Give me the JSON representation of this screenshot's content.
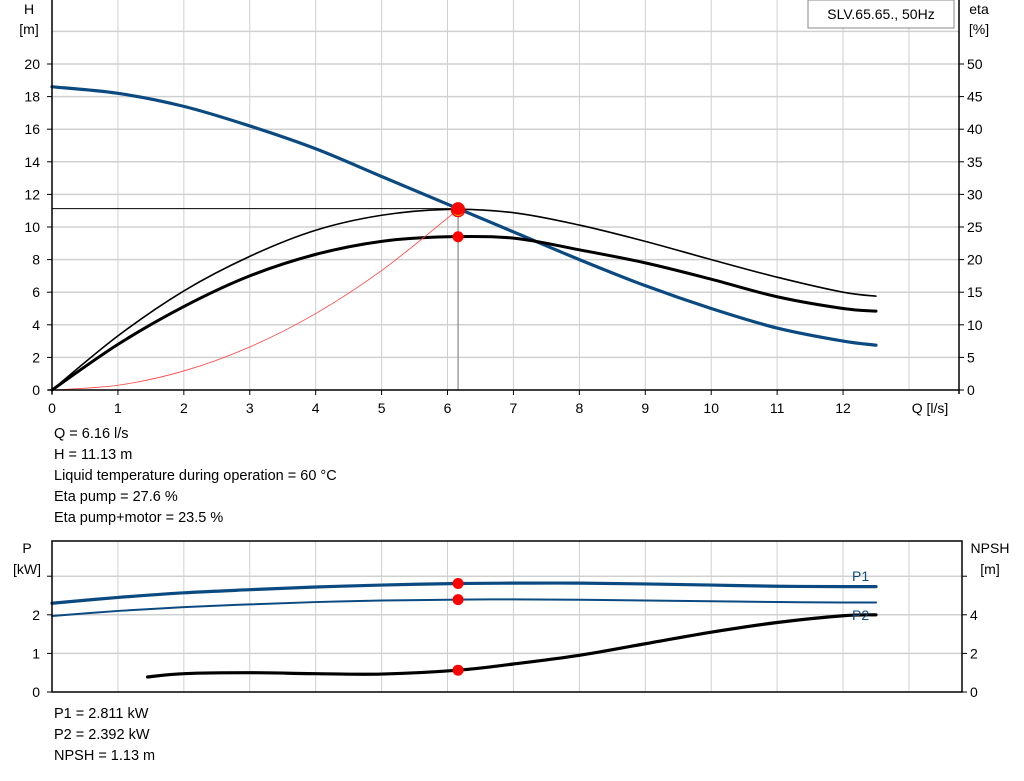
{
  "chart_data": [
    {
      "type": "line",
      "legend_box": "SLV.65.65., 50Hz",
      "xlabel": "Q [l/s]",
      "ylabel_left": [
        "H",
        "[m]"
      ],
      "ylabel_right": [
        "eta",
        "[%]"
      ],
      "xlim": [
        0,
        13.7
      ],
      "ylim_left": [
        0,
        23.8
      ],
      "ylim_right": [
        0,
        59.5
      ],
      "x_ticks": [
        0,
        1,
        2,
        3,
        4,
        5,
        6,
        7,
        8,
        9,
        10,
        11,
        12
      ],
      "y_ticks_left": [
        0,
        2,
        4,
        6,
        8,
        10,
        12,
        14,
        16,
        18,
        20
      ],
      "y_ticks_right": [
        0,
        5,
        10,
        15,
        20,
        25,
        30,
        35,
        40,
        45,
        50
      ],
      "grid": true,
      "colors": {
        "head": "#0b4a80",
        "eta": "#000000",
        "system": "#ff4040",
        "point": "#ff0000",
        "grid": "#d0d0d0"
      },
      "series": [
        {
          "axis": "left",
          "x": [
            0,
            1,
            2,
            3,
            4,
            5,
            6,
            7,
            8,
            9,
            10,
            11,
            12,
            12.5
          ],
          "y": [
            18.6,
            18.2,
            17.4,
            16.2,
            14.8,
            13.1,
            11.4,
            9.7,
            8.0,
            6.4,
            5.0,
            3.8,
            3.0,
            2.75
          ]
        },
        {
          "axis": "right",
          "x": [
            0,
            1,
            2,
            3,
            4,
            5,
            6,
            7,
            8,
            9,
            10,
            11,
            12,
            12.5
          ],
          "y": [
            0,
            8.3,
            15.2,
            20.5,
            24.5,
            26.8,
            27.7,
            27.2,
            25.3,
            22.8,
            20.0,
            17.3,
            15.0,
            14.4
          ]
        },
        {
          "axis": "right",
          "x": [
            0,
            1,
            2,
            3,
            4,
            5,
            6,
            7,
            8,
            9,
            10,
            11,
            12,
            12.5
          ],
          "y": [
            0,
            7.0,
            12.8,
            17.5,
            20.8,
            22.8,
            23.5,
            23.3,
            21.5,
            19.5,
            17.0,
            14.3,
            12.5,
            12.1
          ]
        },
        {
          "axis": "left",
          "x": [
            0,
            1,
            2,
            3,
            4,
            5,
            6,
            6.16
          ],
          "y": [
            0,
            0.29,
            1.17,
            2.64,
            4.69,
            7.33,
            10.55,
            11.13
          ]
        }
      ],
      "operating_point": {
        "Q": 6.16,
        "H": 11.13,
        "eta_pump": 27.6,
        "eta_pump_motor": 23.5
      },
      "annotations": [
        "Q = 6.16 l/s",
        "H = 11.13 m",
        "Liquid temperature during operation = 60 °C",
        "Eta pump = 27.6 %",
        "Eta pump+motor = 23.5 %"
      ]
    },
    {
      "type": "line",
      "ylabel_left": [
        "P",
        "[kW]"
      ],
      "ylabel_right": [
        "NPSH",
        "[m]"
      ],
      "xlim": [
        0,
        13.7
      ],
      "ylim_left": [
        0,
        3.9
      ],
      "ylim_right": [
        0,
        7.8
      ],
      "y_ticks_left": [
        0,
        1,
        2
      ],
      "y_ticks_right": [
        0,
        2,
        4
      ],
      "grid": true,
      "series": [
        {
          "name": "P1",
          "axis": "left",
          "color": "#0b4a80",
          "x": [
            0,
            1,
            2,
            3,
            4,
            5,
            6.16,
            7,
            8,
            9,
            10,
            11,
            12,
            12.5
          ],
          "y": [
            2.3,
            2.45,
            2.57,
            2.65,
            2.72,
            2.77,
            2.811,
            2.82,
            2.82,
            2.8,
            2.77,
            2.74,
            2.73,
            2.73
          ]
        },
        {
          "name": "P2",
          "axis": "left",
          "color": "#0b4a80",
          "x": [
            0,
            1,
            2,
            3,
            4,
            5,
            6.16,
            7,
            8,
            9,
            10,
            11,
            12,
            12.5
          ],
          "y": [
            1.97,
            2.1,
            2.2,
            2.27,
            2.33,
            2.37,
            2.392,
            2.4,
            2.39,
            2.37,
            2.35,
            2.33,
            2.32,
            2.32
          ]
        },
        {
          "axis": "right",
          "color": "#000000",
          "x": [
            1.45,
            2,
            3,
            4,
            5,
            6.16,
            7,
            8,
            9,
            10,
            11,
            12,
            12.5
          ],
          "y": [
            0.78,
            0.95,
            1.0,
            0.95,
            0.93,
            1.13,
            1.45,
            1.9,
            2.5,
            3.1,
            3.6,
            3.95,
            4.0
          ]
        }
      ],
      "operating_point": {
        "Q": 6.16,
        "P1": 2.811,
        "P2": 2.392,
        "NPSH": 1.13
      },
      "annotations": [
        "P1 = 2.811 kW",
        "P2 = 2.392 kW",
        "NPSH = 1.13 m"
      ]
    }
  ]
}
